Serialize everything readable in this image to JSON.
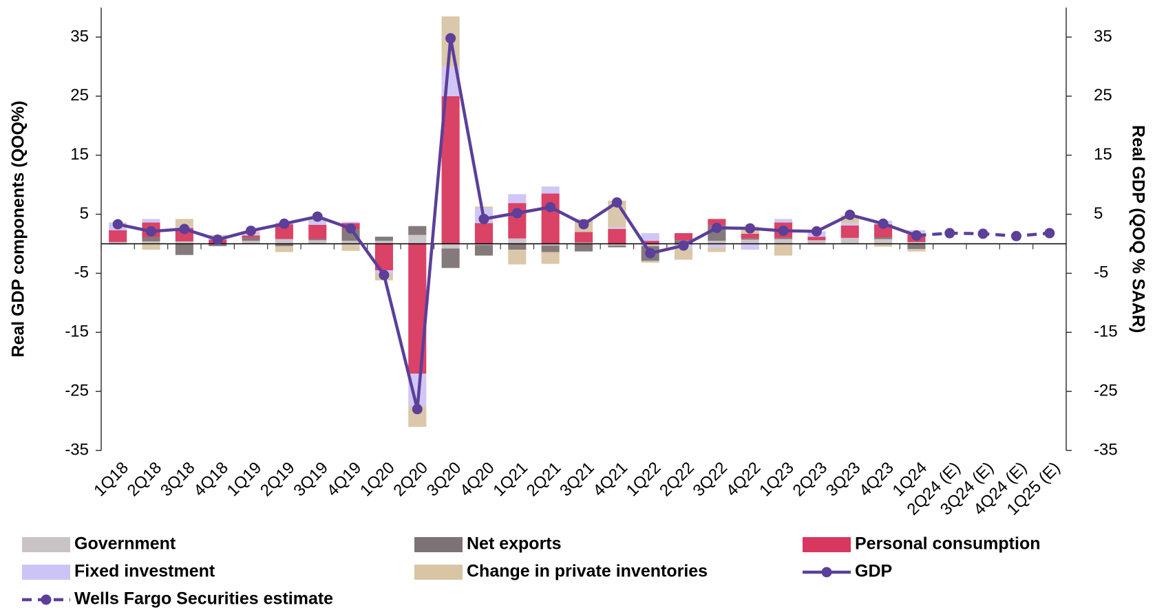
{
  "chart_data": {
    "type": "bar",
    "y_label": "Real GDP components (QOQ%)",
    "y2_label": "Real GDP (QOQ % SAAR)",
    "categories": [
      "1Q18",
      "2Q18",
      "3Q18",
      "4Q18",
      "1Q19",
      "2Q19",
      "3Q19",
      "4Q19",
      "1Q20",
      "2Q20",
      "3Q20",
      "4Q20",
      "1Q21",
      "2Q21",
      "3Q21",
      "4Q21",
      "1Q22",
      "2Q22",
      "3Q22",
      "4Q22",
      "1Q23",
      "2Q23",
      "3Q23",
      "4Q23",
      "1Q24",
      "2Q24 (E)",
      "3Q24 (E)",
      "4Q24 (E)",
      "1Q25 (E)"
    ],
    "ylim": [
      -35,
      40
    ],
    "yticks": [
      35,
      25,
      15,
      5,
      -5,
      -15,
      -25,
      -35
    ],
    "y2lim": [
      -35,
      40
    ],
    "y2ticks": [
      35,
      25,
      15,
      5,
      -5,
      -15,
      -25,
      -35
    ],
    "series": [
      {
        "name": "Government",
        "color": "#c9c2c6",
        "values": [
          0.3,
          0.4,
          0.4,
          -0.1,
          0.5,
          0.8,
          0.6,
          0.5,
          0.5,
          1.5,
          -0.8,
          -0.2,
          0.9,
          -0.3,
          0.2,
          -0.3,
          -0.4,
          -0.3,
          0.5,
          0.7,
          0.8,
          0.6,
          1.0,
          0.8,
          0.3,
          null,
          null,
          null,
          null
        ]
      },
      {
        "name": "Net exports",
        "color": "#7d7374",
        "values": [
          -0.1,
          0.7,
          -1.9,
          -0.3,
          0.5,
          -0.4,
          0.2,
          1.9,
          0.7,
          1.5,
          -3.3,
          -1.8,
          -1.0,
          -1.1,
          -1.3,
          -0.3,
          -2.5,
          0.6,
          2.6,
          0.2,
          0.2,
          -0.1,
          0.0,
          0.3,
          -0.9,
          null,
          null,
          null,
          null
        ]
      },
      {
        "name": "Personal consumption",
        "color": "#d8385e",
        "values": [
          2.0,
          2.5,
          2.3,
          0.7,
          0.4,
          2.5,
          2.4,
          1.1,
          -4.5,
          -22.0,
          25.0,
          3.5,
          6.0,
          8.5,
          1.8,
          2.5,
          0.5,
          1.2,
          1.1,
          0.8,
          2.6,
          0.6,
          2.1,
          2.2,
          1.3,
          null,
          null,
          null,
          null
        ]
      },
      {
        "name": "Fixed investment",
        "color": "#cdc4f6",
        "values": [
          1.1,
          0.6,
          0.2,
          0.3,
          0.5,
          0.3,
          0.7,
          0.2,
          -0.5,
          -5.5,
          5.0,
          2.5,
          1.5,
          1.2,
          0.0,
          0.3,
          1.3,
          -0.5,
          -0.6,
          -1.0,
          0.6,
          0.9,
          0.4,
          0.6,
          0.7,
          null,
          null,
          null,
          null
        ]
      },
      {
        "name": "Change in private inventories",
        "color": "#d9c4a4",
        "values": [
          0.2,
          -1.0,
          1.3,
          0.5,
          0.2,
          -1.0,
          0.5,
          -1.2,
          -1.2,
          -3.5,
          8.5,
          0.3,
          -2.5,
          -2.0,
          2.2,
          4.5,
          -0.3,
          -1.9,
          -0.8,
          1.2,
          -2.0,
          0.0,
          1.3,
          -0.5,
          -0.4,
          null,
          null,
          null,
          null
        ]
      },
      {
        "name": "GDP",
        "color": "#5b3f99",
        "type": "line",
        "axis": "y2",
        "dashed": false,
        "values": [
          3.3,
          2.1,
          2.5,
          0.7,
          2.2,
          3.4,
          4.6,
          2.6,
          -5.3,
          -28.0,
          34.8,
          4.2,
          5.2,
          6.2,
          3.3,
          7.0,
          -1.6,
          -0.3,
          2.7,
          2.6,
          2.2,
          2.1,
          4.9,
          3.4,
          1.4,
          null,
          null,
          null,
          null
        ]
      },
      {
        "name": "Wells Fargo Securities estimate",
        "color": "#5b3f99",
        "type": "line",
        "axis": "y2",
        "dashed": true,
        "values": [
          null,
          null,
          null,
          null,
          null,
          null,
          null,
          null,
          null,
          null,
          null,
          null,
          null,
          null,
          null,
          null,
          null,
          null,
          null,
          null,
          null,
          null,
          null,
          null,
          1.4,
          1.8,
          1.7,
          1.3,
          1.8
        ]
      }
    ]
  }
}
